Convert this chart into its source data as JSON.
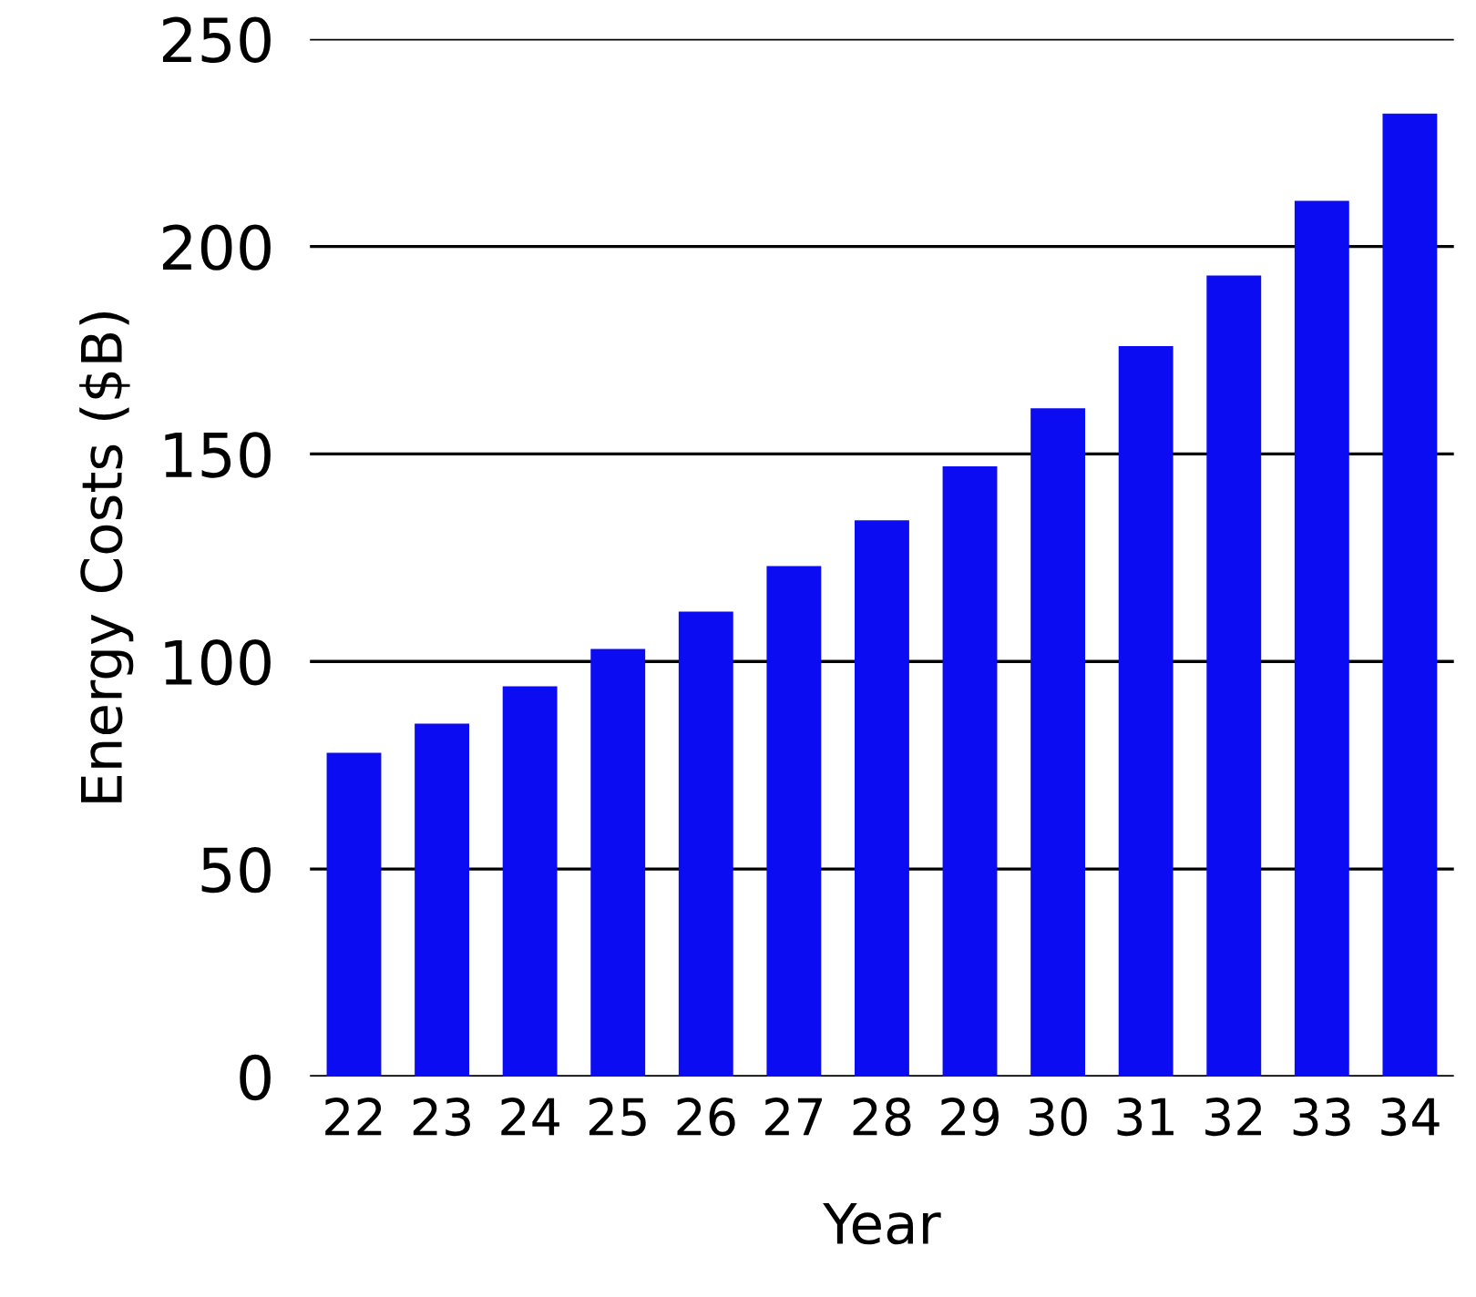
{
  "chart_data": {
    "type": "bar",
    "xlabel": "Year",
    "ylabel": "Energy Costs ($B)",
    "categories": [
      "22",
      "23",
      "24",
      "25",
      "26",
      "27",
      "28",
      "29",
      "30",
      "31",
      "32",
      "33",
      "34"
    ],
    "values": [
      78,
      85,
      94,
      103,
      112,
      123,
      134,
      147,
      161,
      176,
      193,
      211,
      232
    ],
    "color": "#0c0cf2",
    "ylim": [
      0,
      250
    ],
    "yticks": [
      0,
      50,
      100,
      150,
      200,
      250
    ],
    "grid": "y",
    "legend": false
  }
}
